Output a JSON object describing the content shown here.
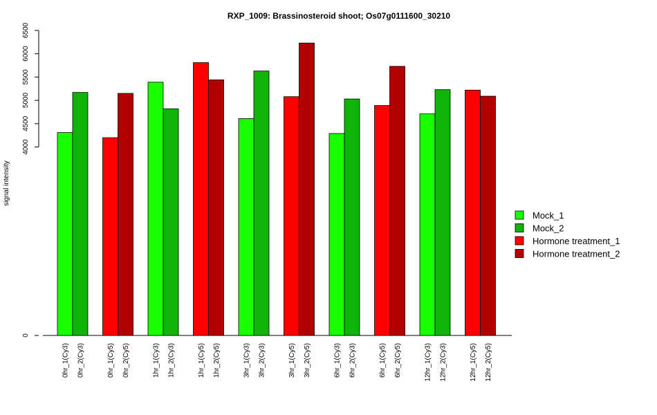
{
  "chart_data": {
    "type": "bar",
    "title": "RXP_1009: Brassinosteroid shoot; Os07g0111600_30210",
    "xlabel": "",
    "ylabel": "signal intensity",
    "ylim": [
      0,
      6500
    ],
    "yticks": [
      0,
      4000,
      4500,
      5000,
      5500,
      6000,
      6500
    ],
    "axis_break": true,
    "grid": false,
    "legend_position": "right",
    "series": [
      {
        "name": "Mock_1",
        "color": "#1aff00"
      },
      {
        "name": "Mock_2",
        "color": "#0fb30a"
      },
      {
        "name": "Hormone treatment_1",
        "color": "#ff0000"
      },
      {
        "name": "Hormone treatment_2",
        "color": "#b30000"
      }
    ],
    "bars": [
      {
        "label": "0hr_1(Cy3)",
        "value": 4310,
        "series": 0
      },
      {
        "label": "0hr_2(Cy3)",
        "value": 5170,
        "series": 1
      },
      {
        "label": "0hr_1(Cy5)",
        "value": 4200,
        "series": 2
      },
      {
        "label": "0hr_2(Cy5)",
        "value": 5150,
        "series": 3
      },
      {
        "label": "1hr_1(Cy3)",
        "value": 5390,
        "series": 0
      },
      {
        "label": "1hr_2(Cy3)",
        "value": 4820,
        "series": 1
      },
      {
        "label": "1hr_1(Cy5)",
        "value": 5810,
        "series": 2
      },
      {
        "label": "1hr_2(Cy5)",
        "value": 5440,
        "series": 3
      },
      {
        "label": "3hr_1(Cy3)",
        "value": 4610,
        "series": 0
      },
      {
        "label": "3hr_2(Cy3)",
        "value": 5630,
        "series": 1
      },
      {
        "label": "3hr_1(Cy5)",
        "value": 5080,
        "series": 2
      },
      {
        "label": "3hr_2(Cy5)",
        "value": 6230,
        "series": 3
      },
      {
        "label": "6hr_1(Cy3)",
        "value": 4290,
        "series": 0
      },
      {
        "label": "6hr_2(Cy3)",
        "value": 5030,
        "series": 1
      },
      {
        "label": "6hr_1(Cy5)",
        "value": 4890,
        "series": 2
      },
      {
        "label": "6hr_2(Cy5)",
        "value": 5730,
        "series": 3
      },
      {
        "label": "12hr_1(Cy3)",
        "value": 4710,
        "series": 0
      },
      {
        "label": "12hr_2(Cy3)",
        "value": 5230,
        "series": 1
      },
      {
        "label": "12hr_1(Cy5)",
        "value": 5220,
        "series": 2
      },
      {
        "label": "12hr_2(Cy5)",
        "value": 5090,
        "series": 3
      }
    ]
  }
}
